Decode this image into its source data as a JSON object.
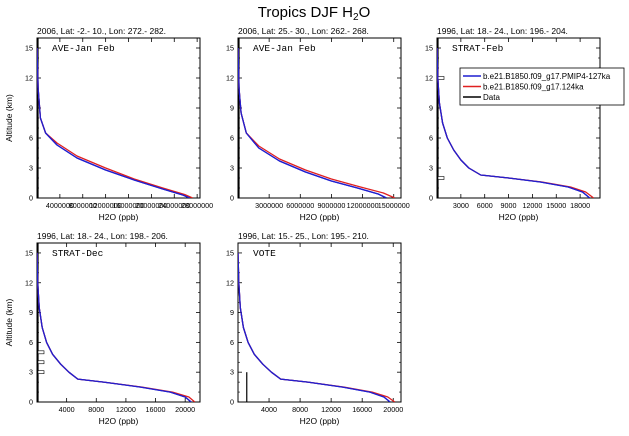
{
  "title": "Tropics DJF H2O",
  "title_parts": {
    "main": "Tropics DJF H",
    "sub": "2",
    "tail": "O"
  },
  "legend": [
    {
      "label": "b.e21.B1850.f09_g17.PMIP4-127ka",
      "color": "#1f1fd0"
    },
    {
      "label": "b.e21.B1850.f09_g17.124ka",
      "color": "#e02020"
    },
    {
      "label": "Data",
      "color": "#000000"
    }
  ],
  "colors": {
    "series_127ka": "#1f1fd0",
    "series_124ka": "#e02020",
    "data": "#000000"
  },
  "chart_data": [
    {
      "type": "line",
      "title": "2006, Lat: -2.- 10., Lon: 272.- 282.",
      "inset_label": "AVE-Jan Feb",
      "xlabel": "H2O (ppb)",
      "ylabel": "Altitude (km)",
      "xlim": [
        0,
        28500000
      ],
      "ylim": [
        0,
        16
      ],
      "xticks": [
        4000000,
        8000000,
        12000000,
        16000000,
        20000000,
        24000000,
        28000000
      ],
      "xticklabels": [
        "4000000",
        "8000000",
        "12000000",
        "16000000",
        "20000000",
        "24000000",
        "28000000"
      ],
      "yticks": [
        0,
        3,
        6,
        9,
        12,
        15
      ],
      "yticklabels": [
        "0",
        "3",
        "6",
        "9",
        "12",
        "15"
      ],
      "series": [
        {
          "name": "b.e21.B1850.f09_g17.PMIP4-127ka",
          "color": "#1f1fd0",
          "x": [
            0,
            200000,
            600000,
            1500000,
            3500000,
            7000000,
            12000000,
            17000000,
            22000000,
            25500000,
            26700000
          ],
          "y": [
            15,
            11,
            8,
            6.5,
            5.3,
            4,
            2.8,
            1.8,
            0.9,
            0.3,
            0
          ]
        },
        {
          "name": "b.e21.B1850.f09_g17.124ka",
          "color": "#e02020",
          "x": [
            0,
            200000,
            600000,
            1500000,
            3500000,
            7000000,
            12000000,
            17000000,
            22000000,
            25800000,
            27200000
          ],
          "y": [
            15,
            11,
            8,
            6.5,
            5.5,
            4.2,
            3,
            1.9,
            1,
            0.35,
            0
          ]
        }
      ],
      "data_obs": {
        "x": 0,
        "y": [
          0,
          16
        ]
      }
    },
    {
      "type": "line",
      "title": "2006, Lat: 25.- 30., Lon: 262.- 268.",
      "inset_label": "AVE-Jan Feb",
      "xlabel": "H2O (ppb)",
      "ylabel": "",
      "xlim": [
        0,
        15700000
      ],
      "ylim": [
        0,
        16
      ],
      "xticks": [
        3000000,
        6000000,
        9000000,
        12000000,
        15000000
      ],
      "xticklabels": [
        "3000000",
        "6000000",
        "9000000",
        "12000000",
        "15000000"
      ],
      "yticks": [
        0,
        3,
        6,
        9,
        12,
        15
      ],
      "yticklabels": [
        "0",
        "3",
        "6",
        "9",
        "12",
        "15"
      ],
      "series": [
        {
          "name": "b.e21.B1850.f09_g17.PMIP4-127ka",
          "color": "#1f1fd0",
          "x": [
            0,
            100000,
            300000,
            800000,
            2000000,
            4000000,
            6500000,
            9000000,
            11500000,
            13500000,
            14300000
          ],
          "y": [
            15,
            11,
            8.5,
            6.5,
            5,
            3.7,
            2.6,
            1.7,
            1,
            0.4,
            0
          ]
        },
        {
          "name": "b.e21.B1850.f09_g17.124ka",
          "color": "#e02020",
          "x": [
            0,
            100000,
            300000,
            800000,
            2000000,
            4000000,
            6500000,
            9000000,
            11800000,
            14000000,
            15100000
          ],
          "y": [
            15,
            11,
            8.5,
            6.5,
            5.2,
            3.9,
            2.8,
            1.9,
            1.1,
            0.5,
            0
          ]
        }
      ],
      "data_obs": {
        "x": 0,
        "y": [
          0,
          16
        ]
      }
    },
    {
      "type": "line",
      "title": "1996, Lat: 18.- 24., Lon: 196.- 204.",
      "inset_label": "STRAT-Feb",
      "xlabel": "H2O (ppb)",
      "ylabel": "",
      "xlim": [
        0,
        20500
      ],
      "ylim": [
        0,
        16
      ],
      "xticks": [
        3000,
        6000,
        9000,
        12000,
        15000,
        18000
      ],
      "xticklabels": [
        "3000",
        "6000",
        "9000",
        "12000",
        "15000",
        "18000"
      ],
      "yticks": [
        0,
        3,
        6,
        9,
        12,
        15
      ],
      "yticklabels": [
        "0",
        "3",
        "6",
        "9",
        "12",
        "15"
      ],
      "series": [
        {
          "name": "b.e21.B1850.f09_g17.PMIP4-127ka",
          "color": "#1f1fd0",
          "x": [
            0,
            100,
            300,
            700,
            1300,
            2100,
            3000,
            4000,
            5500,
            9000,
            13000,
            16500,
            18300,
            19200
          ],
          "y": [
            15,
            12,
            9.5,
            7.5,
            6,
            4.8,
            3.8,
            3,
            2.3,
            2,
            1.6,
            1.1,
            0.6,
            0
          ]
        },
        {
          "name": "b.e21.B1850.f09_g17.124ka",
          "color": "#e02020",
          "x": [
            0,
            100,
            300,
            700,
            1300,
            2100,
            3000,
            4000,
            5500,
            9000,
            13200,
            16800,
            18700,
            19700
          ],
          "y": [
            15,
            12,
            9.5,
            7.5,
            6,
            4.8,
            3.8,
            3,
            2.3,
            2,
            1.6,
            1.1,
            0.6,
            0
          ]
        }
      ],
      "data_obs": {
        "x": 0,
        "y": [
          0,
          16
        ]
      },
      "data_boxes": [
        {
          "y": 12
        },
        {
          "y": 2
        }
      ]
    },
    {
      "type": "line",
      "title": "1996, Lat: 18.- 24., Lon: 198.- 206.",
      "inset_label": "STRAT-Dec",
      "xlabel": "H2O (ppb)",
      "ylabel": "Altitude (km)",
      "xlim": [
        0,
        22000
      ],
      "ylim": [
        0,
        16
      ],
      "xticks": [
        4000,
        8000,
        12000,
        16000,
        20000
      ],
      "xticklabels": [
        "4000",
        "8000",
        "12000",
        "16000",
        "20000"
      ],
      "yticks": [
        0,
        3,
        6,
        9,
        12,
        15
      ],
      "yticklabels": [
        "0",
        "3",
        "6",
        "9",
        "12",
        "15"
      ],
      "series": [
        {
          "name": "b.e21.B1850.f09_g17.PMIP4-127ka",
          "color": "#1f1fd0",
          "x": [
            0,
            100,
            300,
            700,
            1300,
            2100,
            3200,
            4300,
            5500,
            9000,
            14000,
            18000,
            20000,
            20800
          ],
          "y": [
            15,
            12,
            9.5,
            7.5,
            6,
            4.8,
            3.8,
            3,
            2.3,
            2,
            1.5,
            1,
            0.5,
            0
          ]
        },
        {
          "name": "b.e21.B1850.f09_g17.124ka",
          "color": "#e02020",
          "x": [
            0,
            100,
            300,
            700,
            1300,
            2100,
            3200,
            4300,
            5500,
            9000,
            14200,
            18300,
            20500,
            21300
          ],
          "y": [
            15,
            12,
            9.5,
            7.5,
            6,
            4.8,
            3.8,
            3,
            2.3,
            2,
            1.5,
            1,
            0.5,
            0
          ]
        }
      ],
      "data_obs": {
        "x": 0,
        "y": [
          0,
          16
        ]
      },
      "data_boxes": [
        {
          "y": 5
        },
        {
          "y": 4
        },
        {
          "y": 3
        }
      ]
    },
    {
      "type": "line",
      "title": "1996, Lat: 15.- 25., Lon: 195.- 210.",
      "inset_label": "VOTE",
      "xlabel": "H2O (ppb)",
      "ylabel": "",
      "xlim": [
        0,
        21000
      ],
      "ylim": [
        0,
        16
      ],
      "xticks": [
        4000,
        8000,
        12000,
        16000,
        20000
      ],
      "xticklabels": [
        "4000",
        "8000",
        "12000",
        "16000",
        "20000"
      ],
      "yticks": [
        0,
        3,
        6,
        9,
        12,
        15
      ],
      "yticklabels": [
        "0",
        "3",
        "6",
        "9",
        "12",
        "15"
      ],
      "series": [
        {
          "name": "b.e21.B1850.f09_g17.PMIP4-127ka",
          "color": "#1f1fd0",
          "x": [
            0,
            100,
            300,
            700,
            1300,
            2100,
            3200,
            4300,
            5500,
            9000,
            13500,
            17000,
            18800,
            19600
          ],
          "y": [
            15,
            12,
            9.5,
            7.5,
            6,
            4.8,
            3.8,
            3,
            2.3,
            2,
            1.5,
            1,
            0.5,
            0
          ]
        },
        {
          "name": "b.e21.B1850.f09_g17.124ka",
          "color": "#e02020",
          "x": [
            0,
            100,
            300,
            700,
            1300,
            2100,
            3200,
            4300,
            5500,
            9000,
            13700,
            17300,
            19300,
            20200
          ],
          "y": [
            15,
            12,
            9.5,
            7.5,
            6,
            4.8,
            3.8,
            3,
            2.3,
            2,
            1.5,
            1,
            0.5,
            0
          ]
        }
      ],
      "data_obs": {
        "x": 1000,
        "y": [
          0,
          3
        ]
      }
    }
  ]
}
